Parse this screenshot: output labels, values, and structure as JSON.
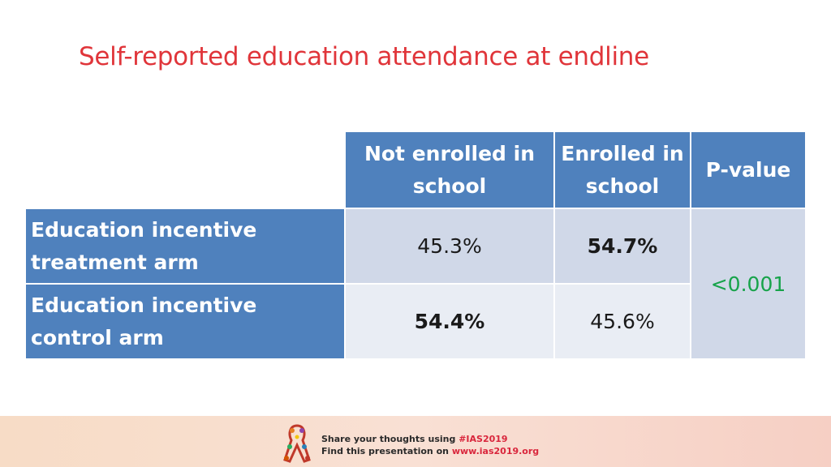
{
  "slide": {
    "title": "Self-reported education attendance at endline"
  },
  "table": {
    "columns": [
      "Not enrolled in school",
      "Enrolled in school",
      "P-value"
    ],
    "rows": [
      {
        "label": "Education incentive treatment arm",
        "not_enrolled": "45.3%",
        "enrolled": "54.7%"
      },
      {
        "label": "Education incentive control arm",
        "not_enrolled": "54.4%",
        "enrolled": "45.6%"
      }
    ],
    "p_value": "<0.001"
  },
  "footer": {
    "line1_prefix": "Share your thoughts using ",
    "hashtag": "#IAS2019",
    "line2_prefix": "Find this presentation on ",
    "url": "www.ias2019.org"
  },
  "colors": {
    "title": "#e0353a",
    "header_fill": "#4f81bd",
    "row1_fill": "#d0d8e8",
    "row2_fill": "#e9edf4",
    "p_value_text": "#17a34a"
  },
  "icons": {
    "footer_logo": "ias-ribbon-logo-icon"
  }
}
